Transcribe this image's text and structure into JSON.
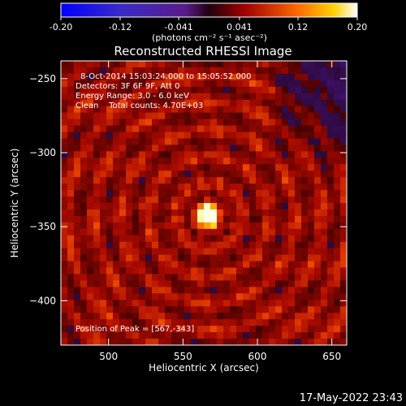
{
  "colorbar": {
    "tick_labels": [
      "-0.20",
      "-0.12",
      "-0.041",
      "0.041",
      "0.12",
      "0.20"
    ],
    "units_label": "(photons cm⁻² s⁻¹ asec⁻²)",
    "range": [
      -0.2,
      0.2
    ]
  },
  "chart_data": {
    "type": "heatmap",
    "title": "Reconstructed RHESSI Image",
    "xlabel": "Heliocentric X (arcsec)",
    "ylabel": "Heliocentric Y (arcsec)",
    "xlim": [
      468,
      660
    ],
    "ylim": [
      -430,
      -238
    ],
    "x_ticks": [
      500,
      550,
      600,
      650
    ],
    "y_ticks": [
      -250,
      -300,
      -350,
      -400
    ],
    "info_lines": [
      "8-Oct-2014 15:03:24.000 to 15:05:52.000",
      "Detectors: 3F 6F 9F, Att 0",
      "Energy Range: 3.0 - 6.0 keV",
      "Clean    Total counts: 4.70E+03"
    ],
    "peak_label": "Position of Peak = [567,-343]",
    "peak": {
      "x": 567,
      "y": -343
    }
  },
  "footer": {
    "timestamp": "17-May-2022 23:43"
  }
}
